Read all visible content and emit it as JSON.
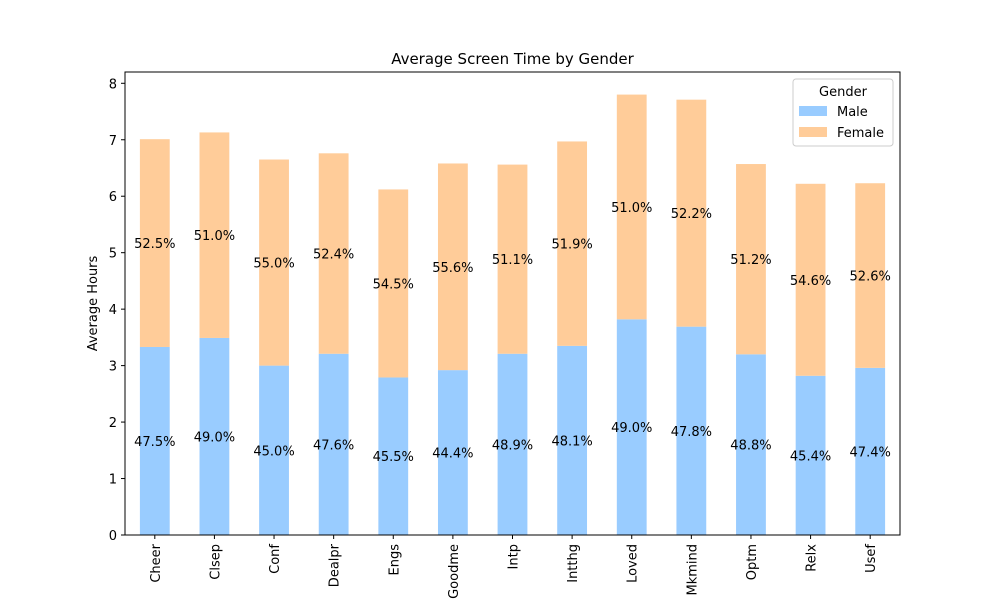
{
  "chart_data": {
    "type": "bar",
    "stacked": true,
    "title": "Average Screen Time by Gender",
    "xlabel": "",
    "ylabel": "Average Hours",
    "ylim": [
      0,
      8.2
    ],
    "yticks": [
      0,
      1,
      2,
      3,
      4,
      5,
      6,
      7,
      8
    ],
    "categories": [
      "Cheer",
      "Clsep",
      "Conf",
      "Dealpr",
      "Engs",
      "Goodme",
      "Intp",
      "Intthg",
      "Loved",
      "Mkmind",
      "Optm",
      "Relx",
      "Usef"
    ],
    "series": [
      {
        "name": "Male",
        "color": "#99ccff",
        "values": [
          3.33,
          3.49,
          3.0,
          3.21,
          2.79,
          2.92,
          3.21,
          3.35,
          3.82,
          3.69,
          3.2,
          2.82,
          2.96
        ],
        "labels": [
          "47.5%",
          "49.0%",
          "45.0%",
          "47.6%",
          "45.5%",
          "44.4%",
          "48.9%",
          "48.1%",
          "49.0%",
          "47.8%",
          "48.8%",
          "45.4%",
          "47.4%"
        ]
      },
      {
        "name": "Female",
        "color": "#ffcc99",
        "values": [
          3.68,
          3.64,
          3.65,
          3.55,
          3.33,
          3.66,
          3.35,
          3.62,
          3.98,
          4.02,
          3.37,
          3.4,
          3.27
        ],
        "labels": [
          "52.5%",
          "51.0%",
          "55.0%",
          "52.4%",
          "54.5%",
          "55.6%",
          "51.1%",
          "51.9%",
          "51.0%",
          "52.2%",
          "51.2%",
          "54.6%",
          "52.6%"
        ]
      }
    ],
    "legend": {
      "title": "Gender",
      "position": "top-right"
    },
    "grid": false
  }
}
